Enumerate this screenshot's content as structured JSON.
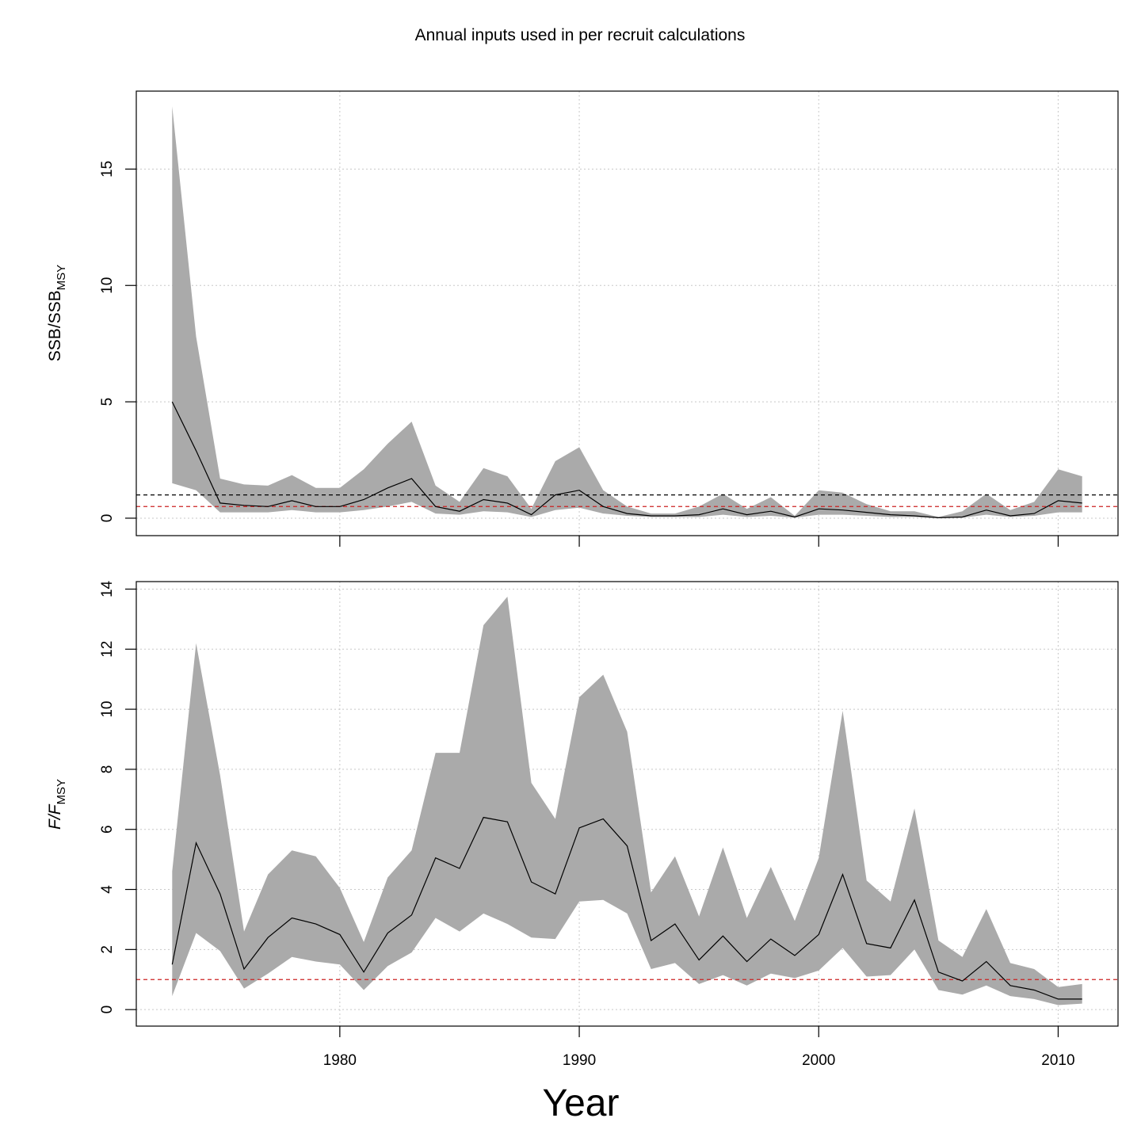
{
  "title": "Annual inputs used in per recruit calculations",
  "chart_data": [
    {
      "type": "area",
      "ylabel": {
        "main": "SSB/SSB",
        "sub": "MSY"
      },
      "xlim": [
        1971.5,
        2012.5
      ],
      "ylim": [
        -0.75,
        18.35
      ],
      "xticks": [
        1980,
        1990,
        2000,
        2010
      ],
      "yticks": [
        "0",
        "5",
        "10",
        "15"
      ],
      "grid": true,
      "years": [
        1973,
        1974,
        1975,
        1976,
        1977,
        1978,
        1979,
        1980,
        1981,
        1982,
        1983,
        1984,
        1985,
        1986,
        1987,
        1988,
        1989,
        1990,
        1991,
        1992,
        1993,
        1994,
        1995,
        1996,
        1997,
        1998,
        1999,
        2000,
        2001,
        2002,
        2003,
        2004,
        2005,
        2006,
        2007,
        2008,
        2009,
        2010,
        2011
      ],
      "median": [
        5.0,
        2.9,
        0.65,
        0.55,
        0.5,
        0.75,
        0.5,
        0.5,
        0.8,
        1.3,
        1.7,
        0.5,
        0.3,
        0.8,
        0.65,
        0.15,
        1.0,
        1.2,
        0.5,
        0.2,
        0.1,
        0.1,
        0.15,
        0.4,
        0.15,
        0.3,
        0.05,
        0.4,
        0.35,
        0.25,
        0.15,
        0.1,
        0.02,
        0.05,
        0.35,
        0.1,
        0.2,
        0.75,
        0.65
      ],
      "upper": [
        17.7,
        7.8,
        1.7,
        1.45,
        1.4,
        1.85,
        1.3,
        1.3,
        2.1,
        3.2,
        4.15,
        1.4,
        0.7,
        2.15,
        1.8,
        0.4,
        2.45,
        3.05,
        1.2,
        0.5,
        0.2,
        0.2,
        0.5,
        1.05,
        0.4,
        0.9,
        0.1,
        1.2,
        1.1,
        0.6,
        0.3,
        0.3,
        0.05,
        0.3,
        1.05,
        0.35,
        0.7,
        2.1,
        1.8
      ],
      "lower": [
        1.5,
        1.2,
        0.25,
        0.25,
        0.25,
        0.35,
        0.25,
        0.25,
        0.35,
        0.5,
        0.7,
        0.2,
        0.15,
        0.3,
        0.25,
        0.05,
        0.35,
        0.45,
        0.2,
        0.1,
        0.05,
        0.05,
        0.05,
        0.15,
        0.05,
        0.1,
        0.02,
        0.15,
        0.15,
        0.1,
        0.05,
        0.05,
        0.01,
        0.02,
        0.15,
        0.05,
        0.1,
        0.25,
        0.25
      ],
      "hlines": [
        {
          "value": 1.0,
          "color": "#000000"
        },
        {
          "value": 0.5,
          "color": "#cc2222"
        }
      ],
      "band_color": "#aaaaaa",
      "line_color": "#000000"
    },
    {
      "type": "area",
      "ylabel": {
        "main": "F/F",
        "sub": "MSY"
      },
      "xlabel": "Year",
      "xlim": [
        1971.5,
        2012.5
      ],
      "ylim": [
        -0.55,
        14.25
      ],
      "xticks": [
        1980,
        1990,
        2000,
        2010
      ],
      "xtick_labels": [
        "1980",
        "1990",
        "2000",
        "2010"
      ],
      "yticks": [
        "0",
        "2",
        "4",
        "6",
        "8",
        "10",
        "12",
        "14"
      ],
      "grid": true,
      "years": [
        1973,
        1974,
        1975,
        1976,
        1977,
        1978,
        1979,
        1980,
        1981,
        1982,
        1983,
        1984,
        1985,
        1986,
        1987,
        1988,
        1989,
        1990,
        1991,
        1992,
        1993,
        1994,
        1995,
        1996,
        1997,
        1998,
        1999,
        2000,
        2001,
        2002,
        2003,
        2004,
        2005,
        2006,
        2007,
        2008,
        2009,
        2010,
        2011
      ],
      "median": [
        1.5,
        5.55,
        3.85,
        1.35,
        2.4,
        3.05,
        2.85,
        2.5,
        1.25,
        2.55,
        3.15,
        5.05,
        4.7,
        6.4,
        6.25,
        4.25,
        3.85,
        6.05,
        6.35,
        5.45,
        2.3,
        2.85,
        1.65,
        2.45,
        1.6,
        2.35,
        1.8,
        2.5,
        4.5,
        2.2,
        2.05,
        3.65,
        1.25,
        0.95,
        1.6,
        0.8,
        0.65,
        0.35,
        0.35
      ],
      "upper": [
        4.6,
        12.2,
        7.8,
        2.6,
        4.5,
        5.3,
        5.1,
        4.05,
        2.25,
        4.4,
        5.3,
        8.55,
        8.55,
        12.8,
        13.75,
        7.55,
        6.35,
        10.4,
        11.15,
        9.25,
        3.9,
        5.1,
        3.1,
        5.4,
        3.05,
        4.75,
        2.95,
        5.05,
        9.95,
        4.3,
        3.6,
        6.7,
        2.3,
        1.75,
        3.35,
        1.55,
        1.35,
        0.75,
        0.85
      ],
      "lower": [
        0.45,
        2.55,
        1.95,
        0.7,
        1.2,
        1.75,
        1.6,
        1.5,
        0.65,
        1.45,
        1.9,
        3.05,
        2.6,
        3.2,
        2.85,
        2.4,
        2.35,
        3.6,
        3.65,
        3.2,
        1.35,
        1.55,
        0.85,
        1.15,
        0.8,
        1.2,
        1.05,
        1.3,
        2.05,
        1.1,
        1.15,
        2.0,
        0.65,
        0.5,
        0.8,
        0.45,
        0.35,
        0.15,
        0.2
      ],
      "hlines": [
        {
          "value": 1.0,
          "color": "#cc2222"
        }
      ],
      "band_color": "#aaaaaa",
      "line_color": "#000000"
    }
  ]
}
